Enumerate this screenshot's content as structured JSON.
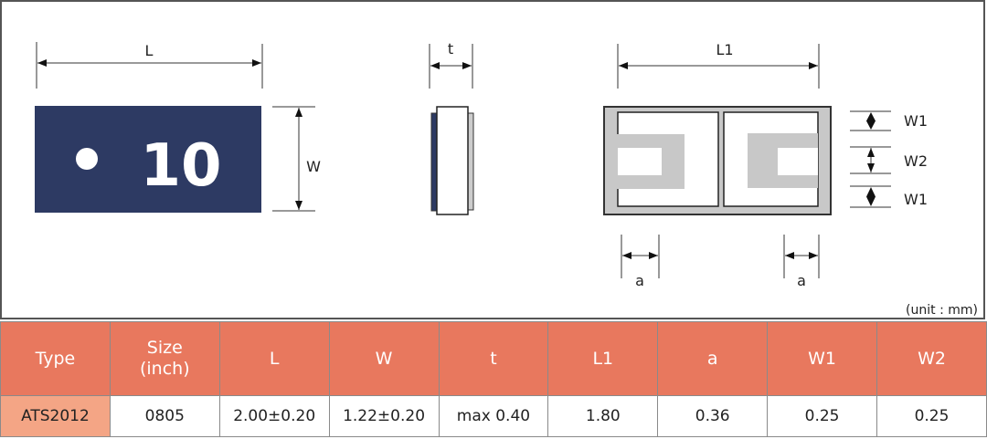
{
  "diagram": {
    "labels": {
      "L": "L",
      "W": "W",
      "t": "t",
      "L1": "L1",
      "W1_top": "W1",
      "W2": "W2",
      "W1_bottom": "W1",
      "a_left": "a",
      "a_right": "a"
    },
    "marking": "10",
    "unit_note": "(unit : mm)",
    "colors": {
      "body": "#2d3a63",
      "electrode": "#c8c8c8",
      "header": "#e8785e",
      "type_cell": "#f4a585"
    }
  },
  "table": {
    "headers": [
      "Type",
      "Size\n(inch)",
      "L",
      "W",
      "t",
      "L1",
      "a",
      "W1",
      "W2"
    ],
    "rows": [
      [
        "ATS2012",
        "0805",
        "2.00±0.20",
        "1.22±0.20",
        "max 0.40",
        "1.80",
        "0.36",
        "0.25",
        "0.25"
      ]
    ]
  }
}
